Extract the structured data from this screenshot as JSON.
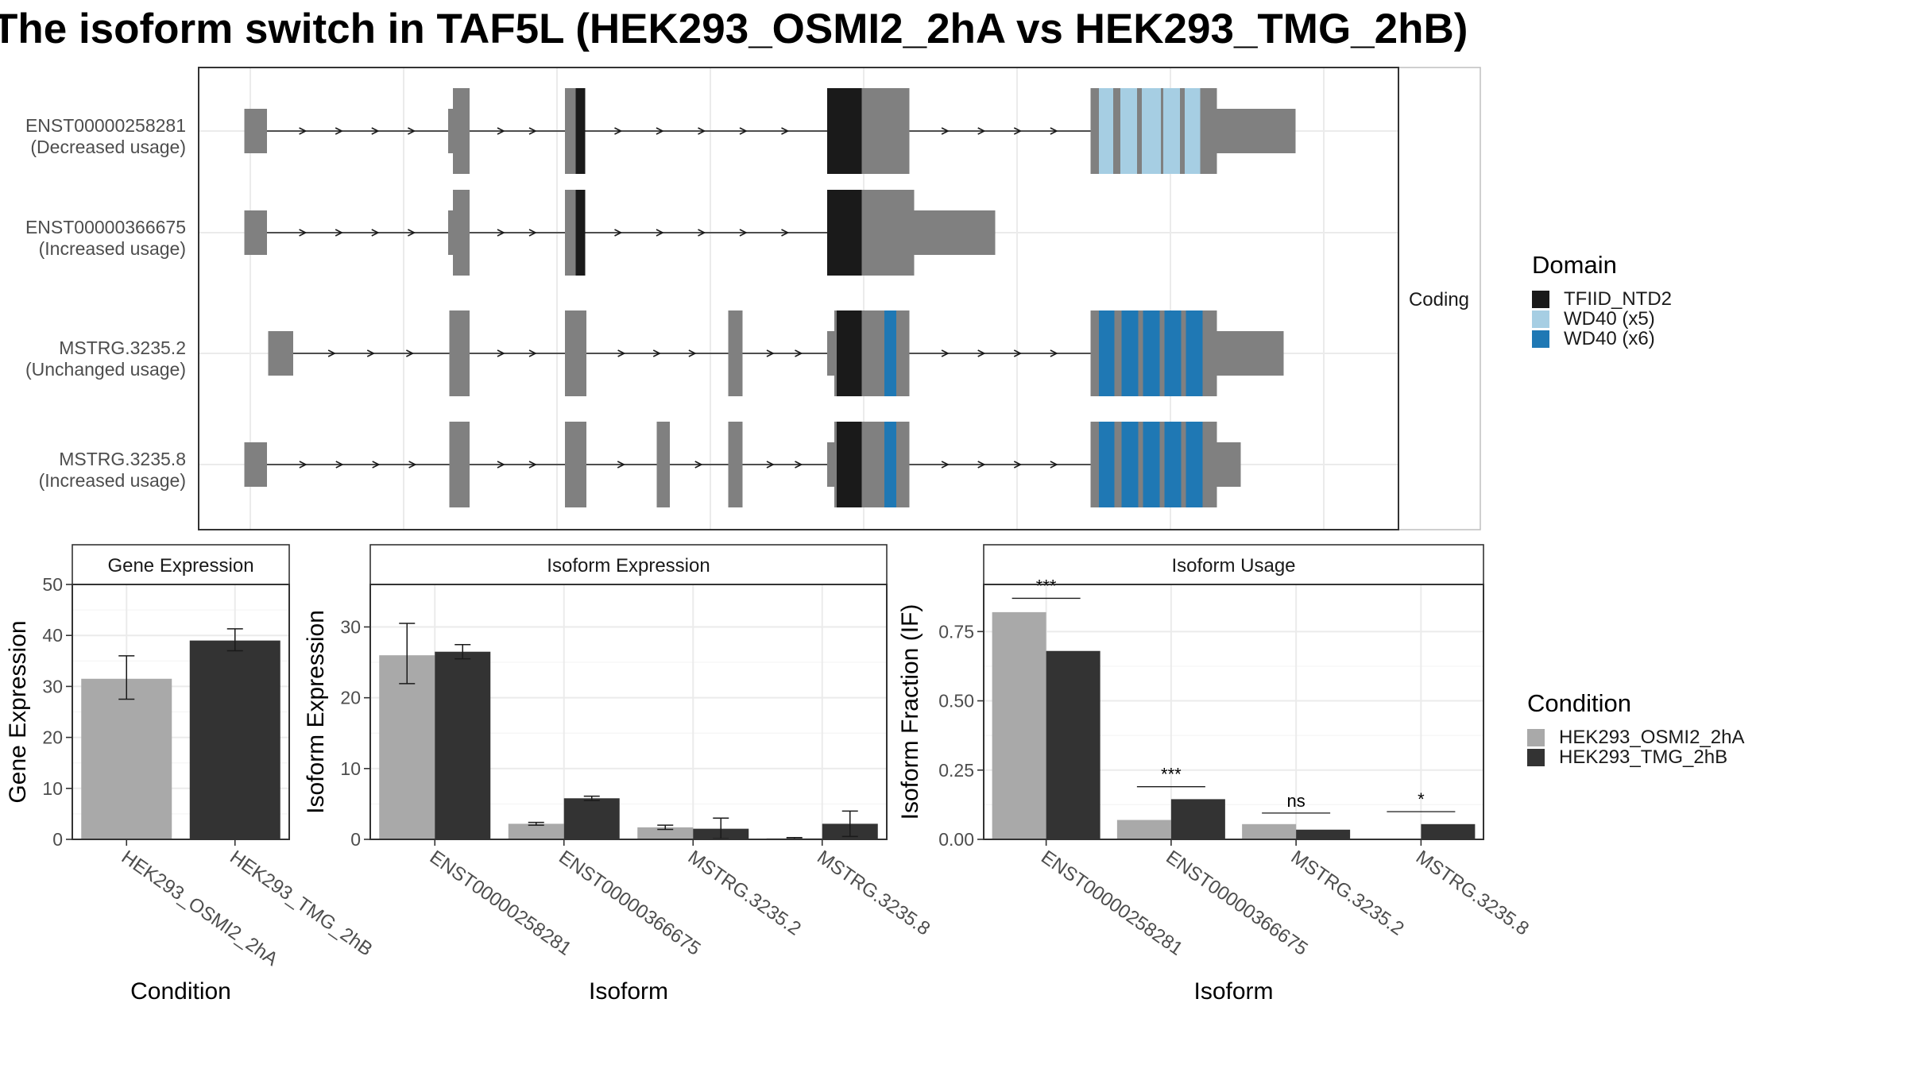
{
  "title": "The isoform switch in TAF5L (HEK293_OSMI2_2hA vs HEK293_TMG_2hB)",
  "colors": {
    "exon": "#808080",
    "line": "#1a1a1a",
    "grid": "#ebebeb",
    "cond1": "#a9a9a9",
    "cond2": "#333333",
    "TFIID_NTD2": "#1a1a1a",
    "WD40_x5": "#a6cee3",
    "WD40_x6": "#1f78b4"
  },
  "legend_domain": {
    "title": "Domain",
    "items": [
      {
        "label": "TFIID_NTD2",
        "color": "#1a1a1a"
      },
      {
        "label": "WD40 (x5)",
        "color": "#a6cee3"
      },
      {
        "label": "WD40 (x6)",
        "color": "#1f78b4"
      }
    ]
  },
  "legend_condition": {
    "title": "Condition",
    "items": [
      {
        "label": "HEK293_OSMI2_2hA",
        "color": "#a9a9a9"
      },
      {
        "label": "HEK293_TMG_2hB",
        "color": "#333333"
      }
    ]
  },
  "chart_data": [
    {
      "type": "gene_structure",
      "facet": "Coding",
      "isoforms": [
        {
          "name": "ENST00000258281",
          "status": "(Decreased usage)",
          "exons": [
            [
              205,
              224,
              "n"
            ],
            [
              376,
              380,
              "n"
            ],
            [
              380,
              394,
              "c"
            ],
            [
              474,
              484,
              "c"
            ],
            [
              694,
              763,
              "c"
            ],
            [
              915,
              1021,
              "c"
            ],
            [
              1021,
              1087,
              "n"
            ]
          ],
          "domains": [
            [
              483,
              491,
              "TFIID_NTD2"
            ],
            [
              694,
              723,
              "TFIID_NTD2"
            ],
            [
              922,
              934,
              "WD40_x5"
            ],
            [
              940,
              954,
              "WD40_x5"
            ],
            [
              958,
              974,
              "WD40_x5"
            ],
            [
              976,
              990,
              "WD40_x5"
            ],
            [
              994,
              1007,
              "WD40_x5"
            ]
          ]
        },
        {
          "name": "ENST00000366675",
          "status": "(Increased usage)",
          "exons": [
            [
              205,
              224,
              "n"
            ],
            [
              376,
              380,
              "n"
            ],
            [
              380,
              394,
              "c"
            ],
            [
              474,
              484,
              "c"
            ],
            [
              694,
              767,
              "c"
            ],
            [
              767,
              835,
              "n"
            ]
          ],
          "domains": [
            [
              483,
              491,
              "TFIID_NTD2"
            ],
            [
              694,
              723,
              "TFIID_NTD2"
            ]
          ]
        },
        {
          "name": "MSTRG.3235.2",
          "status": "(Unchanged usage)",
          "exons": [
            [
              225,
              246,
              "n"
            ],
            [
              377,
              394,
              "c"
            ],
            [
              474,
              492,
              "c"
            ],
            [
              611,
              623,
              "c"
            ],
            [
              694,
              700,
              "n"
            ],
            [
              700,
              763,
              "c"
            ],
            [
              915,
              1021,
              "c"
            ],
            [
              1021,
              1077,
              "n"
            ]
          ],
          "domains": [
            [
              702,
              723,
              "TFIID_NTD2"
            ],
            [
              742,
              752,
              "WD40_x6"
            ],
            [
              922,
              935,
              "WD40_x6"
            ],
            [
              941,
              955,
              "WD40_x6"
            ],
            [
              959,
              973,
              "WD40_x6"
            ],
            [
              977,
              991,
              "WD40_x6"
            ],
            [
              995,
              1009,
              "WD40_x6"
            ]
          ]
        },
        {
          "name": "MSTRG.3235.8",
          "status": "(Increased usage)",
          "exons": [
            [
              205,
              224,
              "n"
            ],
            [
              377,
              394,
              "c"
            ],
            [
              474,
              492,
              "c"
            ],
            [
              551,
              562,
              "c"
            ],
            [
              611,
              623,
              "c"
            ],
            [
              694,
              700,
              "n"
            ],
            [
              700,
              763,
              "c"
            ],
            [
              915,
              1021,
              "c"
            ],
            [
              1021,
              1041,
              "n"
            ]
          ],
          "domains": [
            [
              702,
              723,
              "TFIID_NTD2"
            ],
            [
              742,
              752,
              "WD40_x6"
            ],
            [
              922,
              935,
              "WD40_x6"
            ],
            [
              941,
              955,
              "WD40_x6"
            ],
            [
              959,
              973,
              "WD40_x6"
            ],
            [
              977,
              991,
              "WD40_x6"
            ],
            [
              995,
              1009,
              "WD40_x6"
            ]
          ]
        }
      ]
    },
    {
      "type": "bar",
      "title": "Gene Expression",
      "xlabel": "Condition",
      "ylabel": "Gene Expression",
      "ylim": [
        0,
        50
      ],
      "yticks": [
        0,
        10,
        20,
        30,
        40,
        50
      ],
      "categories": [
        "HEK293_OSMI2_2hA",
        "HEK293_TMG_2hB"
      ],
      "values": [
        31.5,
        39
      ],
      "errors": [
        [
          27.5,
          36
        ],
        [
          37,
          41.3
        ]
      ]
    },
    {
      "type": "bar",
      "title": "Isoform Expression",
      "xlabel": "Isoform",
      "ylabel": "Isoform Expression",
      "ylim": [
        0,
        36
      ],
      "yticks": [
        0,
        10,
        20,
        30
      ],
      "categories": [
        "ENST00000258281",
        "ENST00000366675",
        "MSTRG.3235.2",
        "MSTRG.3235.8"
      ],
      "series": [
        {
          "name": "HEK293_OSMI2_2hA",
          "values": [
            26,
            2.2,
            1.7,
            0.15
          ],
          "errors": [
            [
              22,
              30.5
            ],
            [
              2,
              2.4
            ],
            [
              1.4,
              2
            ],
            [
              0.05,
              0.25
            ]
          ]
        },
        {
          "name": "HEK293_TMG_2hB",
          "values": [
            26.5,
            5.8,
            1.5,
            2.2
          ],
          "errors": [
            [
              25.5,
              27.5
            ],
            [
              5.5,
              6.1
            ],
            [
              0.1,
              3
            ],
            [
              0.4,
              4
            ]
          ]
        }
      ]
    },
    {
      "type": "bar",
      "title": "Isoform Usage",
      "xlabel": "Isoform",
      "ylabel": "Isoform Fraction (IF)",
      "ylim": [
        0,
        0.92
      ],
      "yticks": [
        "0.00",
        "0.25",
        "0.50",
        "0.75"
      ],
      "categories": [
        "ENST00000258281",
        "ENST00000366675",
        "MSTRG.3235.2",
        "MSTRG.3235.8"
      ],
      "series": [
        {
          "name": "HEK293_OSMI2_2hA",
          "values": [
            0.82,
            0.07,
            0.055,
            0
          ]
        },
        {
          "name": "HEK293_TMG_2hB",
          "values": [
            0.68,
            0.145,
            0.035,
            0.055
          ]
        }
      ],
      "significance": [
        "***",
        "***",
        "ns",
        "*"
      ],
      "sig_level": [
        0.87,
        0.19,
        0.095,
        0.1
      ]
    }
  ]
}
